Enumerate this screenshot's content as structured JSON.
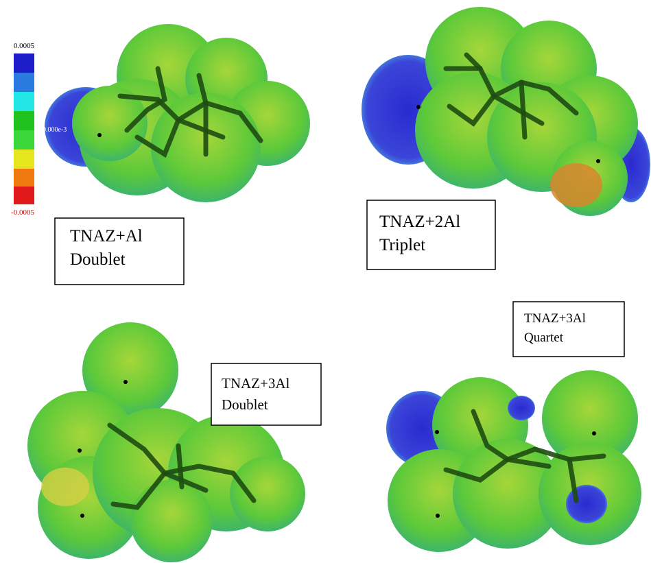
{
  "color_scale": {
    "max": "0.0005",
    "mid": "0.000e-3",
    "min": "-0.0005"
  },
  "panels": [
    {
      "title": "TNAZ+Al",
      "state": "Doublet"
    },
    {
      "title": "TNAZ+2Al",
      "state": "Triplet"
    },
    {
      "title": "TNAZ+3Al",
      "state": "Doublet"
    },
    {
      "title": "TNAZ+3Al",
      "state": "Quartet"
    }
  ]
}
